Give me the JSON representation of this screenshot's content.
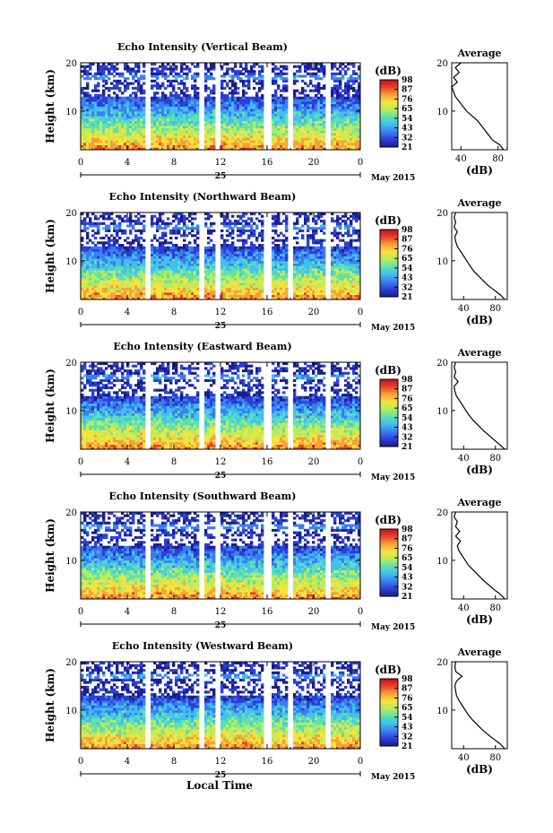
{
  "figure": {
    "xlabel": "Local Time",
    "date_label": "May 2015",
    "day_label": "25",
    "colorbar_unit": "(dB)",
    "colorbar_ticks": [
      "21",
      "32",
      "43",
      "54",
      "65",
      "76",
      "87",
      "98"
    ],
    "colorbar_colors": [
      "#1a1e8c",
      "#2b3fd6",
      "#3b7ef0",
      "#3fc0f0",
      "#5ee0b0",
      "#b8ec5a",
      "#f6e23e",
      "#f7a03a",
      "#e8432a",
      "#c00f1f"
    ],
    "avg_title": "Average",
    "avg_xlabel": "(dB)"
  },
  "chart_data": [
    {
      "type": "heatmap",
      "title": "Echo Intensity (Vertical Beam)",
      "ylabel": "Height (km)",
      "x_ticks": [
        "0",
        "4",
        "8",
        "12",
        "16",
        "20",
        "0"
      ],
      "xlim": [
        0,
        24
      ],
      "ylim": [
        2,
        20
      ],
      "y_ticks": [
        "10",
        "20"
      ],
      "color_range_db": [
        21,
        98
      ],
      "data_gaps_hours": [
        [
          5.5,
          6.0
        ],
        [
          10.2,
          10.5
        ],
        [
          11.5,
          11.9
        ],
        [
          15.8,
          16.4
        ],
        [
          17.8,
          18.2
        ],
        [
          21.0,
          21.5
        ]
      ],
      "profile": {
        "title": "Average",
        "xlabel": "(dB)",
        "x_ticks": [
          "40",
          "80"
        ],
        "xlim": [
          30,
          90
        ],
        "height_km": [
          2,
          3,
          4,
          5,
          6,
          7,
          8,
          9,
          10,
          11,
          12,
          13,
          14,
          15,
          16,
          17,
          18,
          19,
          20
        ],
        "db": [
          86,
          82,
          74,
          70,
          66,
          62,
          58,
          52,
          46,
          42,
          38,
          34,
          32,
          30,
          36,
          32,
          38,
          34,
          40
        ]
      }
    },
    {
      "type": "heatmap",
      "title": "Echo Intensity (Northward Beam)",
      "ylabel": "Height (km)",
      "x_ticks": [
        "0",
        "4",
        "8",
        "12",
        "16",
        "20",
        "0"
      ],
      "xlim": [
        0,
        24
      ],
      "ylim": [
        2,
        20
      ],
      "y_ticks": [
        "10",
        "20"
      ],
      "color_range_db": [
        21,
        98
      ],
      "data_gaps_hours": [
        [
          5.5,
          6.0
        ],
        [
          10.2,
          10.5
        ],
        [
          11.5,
          11.9
        ],
        [
          15.8,
          16.4
        ],
        [
          17.8,
          18.2
        ],
        [
          21.0,
          21.5
        ]
      ],
      "profile": {
        "title": "Average",
        "xlabel": "(dB)",
        "x_ticks": [
          "40",
          "80"
        ],
        "xlim": [
          25,
          95
        ],
        "height_km": [
          2,
          3,
          4,
          5,
          6,
          7,
          8,
          9,
          10,
          11,
          12,
          13,
          14,
          15,
          16,
          17,
          18,
          19,
          20
        ],
        "db": [
          92,
          86,
          78,
          70,
          64,
          58,
          52,
          48,
          44,
          40,
          36,
          32,
          30,
          29,
          32,
          28,
          30,
          28,
          30
        ]
      }
    },
    {
      "type": "heatmap",
      "title": "Echo Intensity (Eastward Beam)",
      "ylabel": "Height (km)",
      "x_ticks": [
        "0",
        "4",
        "8",
        "12",
        "16",
        "20",
        "0"
      ],
      "xlim": [
        0,
        24
      ],
      "ylim": [
        2,
        20
      ],
      "y_ticks": [
        "10",
        "20"
      ],
      "color_range_db": [
        21,
        98
      ],
      "data_gaps_hours": [
        [
          5.5,
          6.0
        ],
        [
          10.2,
          10.5
        ],
        [
          11.5,
          11.9
        ],
        [
          15.8,
          16.4
        ],
        [
          17.8,
          18.2
        ],
        [
          21.0,
          21.5
        ]
      ],
      "profile": {
        "title": "Average",
        "xlabel": "(dB)",
        "x_ticks": [
          "40",
          "80"
        ],
        "xlim": [
          25,
          95
        ],
        "height_km": [
          2,
          3,
          4,
          5,
          6,
          7,
          8,
          9,
          10,
          11,
          12,
          13,
          14,
          15,
          16,
          17,
          18,
          19,
          20
        ],
        "db": [
          92,
          85,
          78,
          71,
          64,
          58,
          52,
          47,
          43,
          39,
          35,
          31,
          29,
          28,
          33,
          28,
          30,
          28,
          30
        ]
      }
    },
    {
      "type": "heatmap",
      "title": "Echo Intensity (Southward Beam)",
      "ylabel": "Height (km)",
      "x_ticks": [
        "0",
        "4",
        "8",
        "12",
        "16",
        "20",
        "0"
      ],
      "xlim": [
        0,
        24
      ],
      "ylim": [
        2,
        20
      ],
      "y_ticks": [
        "10",
        "20"
      ],
      "color_range_db": [
        21,
        98
      ],
      "data_gaps_hours": [
        [
          5.5,
          6.0
        ],
        [
          10.2,
          10.5
        ],
        [
          11.5,
          11.9
        ],
        [
          15.8,
          16.4
        ],
        [
          17.8,
          18.2
        ],
        [
          21.0,
          21.5
        ]
      ],
      "profile": {
        "title": "Average",
        "xlabel": "(dB)",
        "x_ticks": [
          "40",
          "80"
        ],
        "xlim": [
          25,
          95
        ],
        "height_km": [
          2,
          3,
          4,
          5,
          6,
          7,
          8,
          9,
          10,
          11,
          12,
          13,
          14,
          15,
          16,
          17,
          18,
          19,
          20
        ],
        "db": [
          92,
          86,
          78,
          71,
          64,
          58,
          52,
          46,
          42,
          38,
          34,
          32,
          36,
          30,
          35,
          30,
          32,
          28,
          30
        ]
      }
    },
    {
      "type": "heatmap",
      "title": "Echo Intensity (Westward Beam)",
      "ylabel": "Height (km)",
      "x_ticks": [
        "0",
        "4",
        "8",
        "12",
        "16",
        "20",
        "0"
      ],
      "xlim": [
        0,
        24
      ],
      "ylim": [
        2,
        20
      ],
      "y_ticks": [
        "10",
        "20"
      ],
      "color_range_db": [
        21,
        98
      ],
      "data_gaps_hours": [
        [
          5.5,
          6.0
        ],
        [
          10.2,
          10.5
        ],
        [
          11.5,
          11.9
        ],
        [
          15.8,
          16.4
        ],
        [
          17.8,
          18.2
        ],
        [
          21.0,
          21.5
        ]
      ],
      "profile": {
        "title": "Average",
        "xlabel": "(dB)",
        "x_ticks": [
          "40",
          "80"
        ],
        "xlim": [
          25,
          95
        ],
        "height_km": [
          2,
          3,
          4,
          5,
          6,
          7,
          8,
          9,
          10,
          11,
          12,
          13,
          14,
          15,
          16,
          17,
          18,
          19,
          20
        ],
        "db": [
          92,
          86,
          78,
          70,
          63,
          57,
          51,
          46,
          42,
          38,
          34,
          31,
          30,
          29,
          31,
          38,
          30,
          29,
          30
        ]
      }
    }
  ]
}
